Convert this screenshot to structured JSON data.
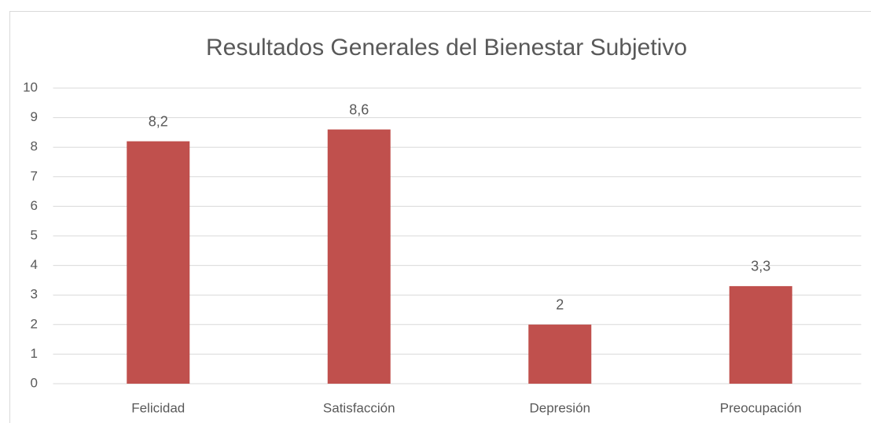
{
  "chart_data": {
    "type": "bar",
    "title": "Resultados Generales del Bienestar Subjetivo",
    "categories": [
      "Felicidad",
      "Satisfacción",
      "Depresión",
      "Preocupación"
    ],
    "values": [
      8.2,
      8.6,
      2,
      3.3
    ],
    "value_labels": [
      "8,2",
      "8,6",
      "2",
      "3,3"
    ],
    "color": "#c0504d",
    "ylim": [
      0,
      10
    ],
    "yticks": [
      0,
      1,
      2,
      3,
      4,
      5,
      6,
      7,
      8,
      9,
      10
    ],
    "grid": true
  }
}
